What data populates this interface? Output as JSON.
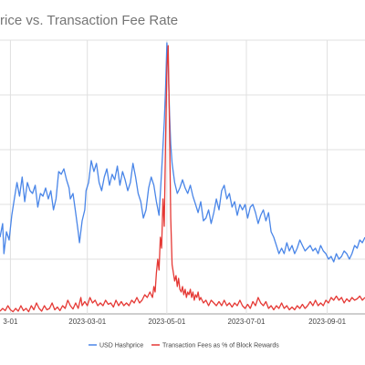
{
  "chart_data": {
    "type": "line",
    "title": "rice vs. Transaction Fee Rate",
    "xlabel": "",
    "ylabel": "",
    "x_tick_labels": [
      "3-01",
      "2023-03-01",
      "2023-05-01",
      "2023-07-01",
      "2023-09-01"
    ],
    "x_tick_values": [
      0,
      59,
      120,
      181,
      243
    ],
    "x_range": [
      -8,
      272
    ],
    "y_range": [
      0,
      1
    ],
    "y_tick_labels": [],
    "grid": true,
    "legend_position": "bottom",
    "series": [
      {
        "name": "USD Hashprice",
        "color": "#4a86e8",
        "points": [
          [
            -8,
            0.28
          ],
          [
            -6,
            0.33
          ],
          [
            -5,
            0.22
          ],
          [
            -3,
            0.3
          ],
          [
            -1,
            0.27
          ],
          [
            1,
            0.36
          ],
          [
            3,
            0.42
          ],
          [
            5,
            0.48
          ],
          [
            7,
            0.43
          ],
          [
            9,
            0.5
          ],
          [
            11,
            0.41
          ],
          [
            13,
            0.48
          ],
          [
            15,
            0.45
          ],
          [
            17,
            0.44
          ],
          [
            19,
            0.47
          ],
          [
            21,
            0.39
          ],
          [
            23,
            0.44
          ],
          [
            25,
            0.43
          ],
          [
            27,
            0.46
          ],
          [
            29,
            0.42
          ],
          [
            31,
            0.45
          ],
          [
            33,
            0.38
          ],
          [
            35,
            0.42
          ],
          [
            37,
            0.52
          ],
          [
            39,
            0.51
          ],
          [
            41,
            0.53
          ],
          [
            43,
            0.49
          ],
          [
            45,
            0.46
          ],
          [
            46,
            0.42
          ],
          [
            48,
            0.44
          ],
          [
            50,
            0.37
          ],
          [
            52,
            0.3
          ],
          [
            53,
            0.26
          ],
          [
            55,
            0.34
          ],
          [
            57,
            0.38
          ],
          [
            58,
            0.45
          ],
          [
            60,
            0.48
          ],
          [
            62,
            0.56
          ],
          [
            64,
            0.52
          ],
          [
            66,
            0.55
          ],
          [
            68,
            0.48
          ],
          [
            70,
            0.45
          ],
          [
            72,
            0.5
          ],
          [
            74,
            0.53
          ],
          [
            76,
            0.47
          ],
          [
            78,
            0.51
          ],
          [
            80,
            0.49
          ],
          [
            82,
            0.54
          ],
          [
            84,
            0.47
          ],
          [
            86,
            0.52
          ],
          [
            88,
            0.49
          ],
          [
            90,
            0.45
          ],
          [
            92,
            0.48
          ],
          [
            94,
            0.55
          ],
          [
            96,
            0.5
          ],
          [
            98,
            0.44
          ],
          [
            100,
            0.41
          ],
          [
            102,
            0.35
          ],
          [
            104,
            0.38
          ],
          [
            106,
            0.46
          ],
          [
            108,
            0.5
          ],
          [
            110,
            0.47
          ],
          [
            112,
            0.41
          ],
          [
            114,
            0.36
          ],
          [
            116,
            0.52
          ],
          [
            118,
            0.7
          ],
          [
            119,
            0.82
          ],
          [
            120,
            0.99
          ],
          [
            121,
            0.91
          ],
          [
            122,
            0.74
          ],
          [
            123,
            0.62
          ],
          [
            124,
            0.55
          ],
          [
            126,
            0.48
          ],
          [
            128,
            0.44
          ],
          [
            130,
            0.46
          ],
          [
            132,
            0.49
          ],
          [
            134,
            0.46
          ],
          [
            136,
            0.44
          ],
          [
            138,
            0.47
          ],
          [
            140,
            0.43
          ],
          [
            142,
            0.4
          ],
          [
            144,
            0.37
          ],
          [
            146,
            0.41
          ],
          [
            148,
            0.34
          ],
          [
            150,
            0.35
          ],
          [
            152,
            0.38
          ],
          [
            154,
            0.33
          ],
          [
            156,
            0.37
          ],
          [
            158,
            0.42
          ],
          [
            160,
            0.38
          ],
          [
            162,
            0.45
          ],
          [
            164,
            0.47
          ],
          [
            166,
            0.42
          ],
          [
            168,
            0.44
          ],
          [
            170,
            0.39
          ],
          [
            172,
            0.41
          ],
          [
            174,
            0.36
          ],
          [
            176,
            0.4
          ],
          [
            178,
            0.38
          ],
          [
            180,
            0.4
          ],
          [
            182,
            0.35
          ],
          [
            184,
            0.39
          ],
          [
            186,
            0.4
          ],
          [
            188,
            0.37
          ],
          [
            190,
            0.33
          ],
          [
            192,
            0.36
          ],
          [
            194,
            0.38
          ],
          [
            196,
            0.34
          ],
          [
            198,
            0.37
          ],
          [
            200,
            0.3
          ],
          [
            202,
            0.28
          ],
          [
            204,
            0.25
          ],
          [
            206,
            0.22
          ],
          [
            208,
            0.24
          ],
          [
            210,
            0.22
          ],
          [
            212,
            0.26
          ],
          [
            214,
            0.23
          ],
          [
            216,
            0.25
          ],
          [
            218,
            0.22
          ],
          [
            220,
            0.24
          ],
          [
            222,
            0.27
          ],
          [
            224,
            0.25
          ],
          [
            226,
            0.23
          ],
          [
            228,
            0.24
          ],
          [
            230,
            0.25
          ],
          [
            232,
            0.23
          ],
          [
            234,
            0.24
          ],
          [
            236,
            0.22
          ],
          [
            238,
            0.25
          ],
          [
            240,
            0.23
          ],
          [
            242,
            0.22
          ],
          [
            244,
            0.2
          ],
          [
            246,
            0.21
          ],
          [
            248,
            0.19
          ],
          [
            250,
            0.22
          ],
          [
            252,
            0.2
          ],
          [
            254,
            0.21
          ],
          [
            256,
            0.23
          ],
          [
            258,
            0.22
          ],
          [
            260,
            0.2
          ],
          [
            262,
            0.22
          ],
          [
            264,
            0.25
          ],
          [
            266,
            0.24
          ],
          [
            268,
            0.27
          ],
          [
            270,
            0.26
          ],
          [
            272,
            0.28
          ]
        ]
      },
      {
        "name": "Transaction Fees as % of Block Rewards",
        "color": "#e53935",
        "points": [
          [
            -8,
            0.01
          ],
          [
            -6,
            0.02
          ],
          [
            -4,
            0.012
          ],
          [
            -2,
            0.03
          ],
          [
            0,
            0.015
          ],
          [
            2,
            0.008
          ],
          [
            4,
            0.02
          ],
          [
            6,
            0.01
          ],
          [
            8,
            0.03
          ],
          [
            10,
            0.012
          ],
          [
            12,
            0.02
          ],
          [
            14,
            0.008
          ],
          [
            16,
            0.03
          ],
          [
            18,
            0.015
          ],
          [
            20,
            0.04
          ],
          [
            22,
            0.02
          ],
          [
            24,
            0.01
          ],
          [
            26,
            0.03
          ],
          [
            28,
            0.015
          ],
          [
            30,
            0.02
          ],
          [
            32,
            0.04
          ],
          [
            34,
            0.015
          ],
          [
            36,
            0.025
          ],
          [
            38,
            0.012
          ],
          [
            40,
            0.03
          ],
          [
            42,
            0.02
          ],
          [
            44,
            0.05
          ],
          [
            46,
            0.03
          ],
          [
            48,
            0.018
          ],
          [
            50,
            0.04
          ],
          [
            52,
            0.02
          ],
          [
            54,
            0.06
          ],
          [
            55,
            0.03
          ],
          [
            57,
            0.045
          ],
          [
            59,
            0.03
          ],
          [
            61,
            0.06
          ],
          [
            63,
            0.04
          ],
          [
            65,
            0.05
          ],
          [
            67,
            0.03
          ],
          [
            69,
            0.04
          ],
          [
            71,
            0.03
          ],
          [
            73,
            0.05
          ],
          [
            75,
            0.035
          ],
          [
            77,
            0.04
          ],
          [
            79,
            0.025
          ],
          [
            81,
            0.05
          ],
          [
            83,
            0.03
          ],
          [
            85,
            0.045
          ],
          [
            87,
            0.03
          ],
          [
            89,
            0.04
          ],
          [
            91,
            0.03
          ],
          [
            93,
            0.05
          ],
          [
            95,
            0.04
          ],
          [
            97,
            0.06
          ],
          [
            99,
            0.04
          ],
          [
            101,
            0.05
          ],
          [
            103,
            0.07
          ],
          [
            105,
            0.06
          ],
          [
            107,
            0.08
          ],
          [
            109,
            0.06
          ],
          [
            110,
            0.1
          ],
          [
            111,
            0.08
          ],
          [
            112,
            0.15
          ],
          [
            113,
            0.2
          ],
          [
            114,
            0.16
          ],
          [
            115,
            0.28
          ],
          [
            116,
            0.24
          ],
          [
            117,
            0.42
          ],
          [
            118,
            0.32
          ],
          [
            119,
            0.62
          ],
          [
            120,
            0.9
          ],
          [
            121,
            0.98
          ],
          [
            122,
            0.7
          ],
          [
            123,
            0.35
          ],
          [
            124,
            0.18
          ],
          [
            125,
            0.15
          ],
          [
            126,
            0.12
          ],
          [
            127,
            0.14
          ],
          [
            128,
            0.1
          ],
          [
            129,
            0.13
          ],
          [
            130,
            0.09
          ],
          [
            131,
            0.08
          ],
          [
            132,
            0.1
          ],
          [
            133,
            0.07
          ],
          [
            134,
            0.09
          ],
          [
            135,
            0.06
          ],
          [
            136,
            0.08
          ],
          [
            137,
            0.07
          ],
          [
            138,
            0.09
          ],
          [
            139,
            0.06
          ],
          [
            140,
            0.08
          ],
          [
            141,
            0.05
          ],
          [
            142,
            0.07
          ],
          [
            143,
            0.06
          ],
          [
            144,
            0.08
          ],
          [
            145,
            0.05
          ],
          [
            146,
            0.06
          ],
          [
            148,
            0.04
          ],
          [
            150,
            0.05
          ],
          [
            152,
            0.03
          ],
          [
            154,
            0.05
          ],
          [
            156,
            0.04
          ],
          [
            158,
            0.03
          ],
          [
            160,
            0.045
          ],
          [
            162,
            0.03
          ],
          [
            164,
            0.05
          ],
          [
            166,
            0.03
          ],
          [
            168,
            0.04
          ],
          [
            170,
            0.025
          ],
          [
            172,
            0.04
          ],
          [
            174,
            0.03
          ],
          [
            176,
            0.05
          ],
          [
            178,
            0.03
          ],
          [
            180,
            0.02
          ],
          [
            182,
            0.035
          ],
          [
            184,
            0.02
          ],
          [
            186,
            0.045
          ],
          [
            188,
            0.03
          ],
          [
            190,
            0.06
          ],
          [
            192,
            0.04
          ],
          [
            194,
            0.03
          ],
          [
            196,
            0.045
          ],
          [
            198,
            0.02
          ],
          [
            200,
            0.03
          ],
          [
            202,
            0.015
          ],
          [
            204,
            0.03
          ],
          [
            206,
            0.02
          ],
          [
            208,
            0.04
          ],
          [
            210,
            0.02
          ],
          [
            212,
            0.03
          ],
          [
            214,
            0.015
          ],
          [
            216,
            0.025
          ],
          [
            218,
            0.015
          ],
          [
            220,
            0.03
          ],
          [
            222,
            0.02
          ],
          [
            224,
            0.035
          ],
          [
            226,
            0.02
          ],
          [
            228,
            0.03
          ],
          [
            230,
            0.045
          ],
          [
            232,
            0.03
          ],
          [
            234,
            0.05
          ],
          [
            236,
            0.03
          ],
          [
            238,
            0.04
          ],
          [
            240,
            0.03
          ],
          [
            242,
            0.05
          ],
          [
            244,
            0.04
          ],
          [
            246,
            0.06
          ],
          [
            248,
            0.05
          ],
          [
            250,
            0.065
          ],
          [
            252,
            0.05
          ],
          [
            254,
            0.06
          ],
          [
            256,
            0.04
          ],
          [
            258,
            0.055
          ],
          [
            260,
            0.045
          ],
          [
            262,
            0.06
          ],
          [
            264,
            0.05
          ],
          [
            266,
            0.055
          ],
          [
            268,
            0.065
          ],
          [
            270,
            0.05
          ],
          [
            272,
            0.06
          ]
        ]
      }
    ]
  }
}
